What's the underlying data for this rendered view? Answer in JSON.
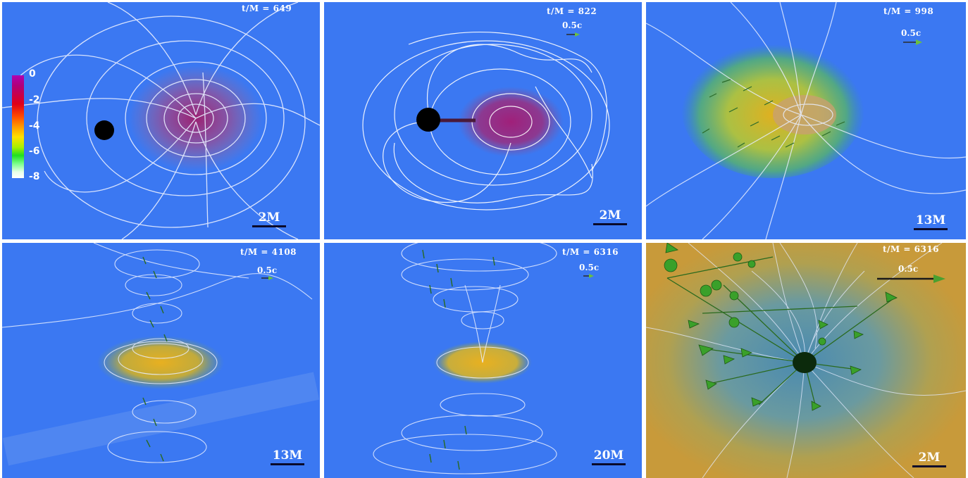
{
  "colorbar": {
    "ticks": [
      "0",
      "-2",
      "-4",
      "-6",
      "-8"
    ]
  },
  "panels": [
    {
      "time": "t/M = 649",
      "velocity": "",
      "scale": "2M"
    },
    {
      "time": "t/M = 822",
      "velocity": "0.5c",
      "scale": "2M"
    },
    {
      "time": "t/M = 998",
      "velocity": "0.5c",
      "scale": "13M"
    },
    {
      "time": "t/M = 4108",
      "velocity": "0.5c",
      "scale": "13M"
    },
    {
      "time": "t/M = 6316",
      "velocity": "0.5c",
      "scale": "20M"
    },
    {
      "time": "t/M = 6316",
      "velocity": "0.5c",
      "scale": "2M"
    }
  ],
  "colors": {
    "background": "#3b78f2",
    "field_lines": "#e6ecff",
    "black_hole": "#000000",
    "arrows": "#2f8a1e"
  }
}
